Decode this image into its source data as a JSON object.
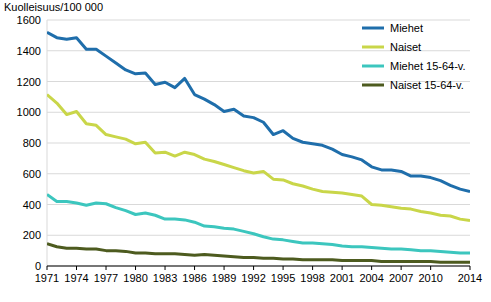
{
  "chart_data": {
    "type": "line",
    "ylabel": "Kuolleisuus/100 000",
    "x": [
      1971,
      1972,
      1973,
      1974,
      1975,
      1976,
      1977,
      1978,
      1979,
      1980,
      1981,
      1982,
      1983,
      1984,
      1985,
      1986,
      1987,
      1988,
      1989,
      1990,
      1991,
      1992,
      1993,
      1994,
      1995,
      1996,
      1997,
      1998,
      1999,
      2000,
      2001,
      2002,
      2003,
      2004,
      2005,
      2006,
      2007,
      2008,
      2009,
      2010,
      2011,
      2012,
      2013,
      2014
    ],
    "series": [
      {
        "name": "Miehet",
        "color": "#1f6eab",
        "values": [
          1520,
          1485,
          1475,
          1485,
          1410,
          1410,
          1365,
          1320,
          1275,
          1250,
          1255,
          1180,
          1195,
          1160,
          1220,
          1115,
          1085,
          1050,
          1005,
          1020,
          975,
          965,
          935,
          855,
          880,
          830,
          805,
          795,
          785,
          760,
          725,
          710,
          690,
          645,
          625,
          625,
          615,
          585,
          585,
          575,
          555,
          525,
          500,
          485
        ]
      },
      {
        "name": "Naiset",
        "color": "#c9d649",
        "values": [
          1115,
          1060,
          985,
          1005,
          925,
          915,
          855,
          840,
          825,
          795,
          805,
          735,
          740,
          715,
          740,
          725,
          695,
          680,
          660,
          640,
          620,
          605,
          615,
          565,
          560,
          535,
          520,
          500,
          485,
          480,
          475,
          465,
          455,
          400,
          395,
          385,
          375,
          370,
          355,
          345,
          330,
          325,
          305,
          295
        ]
      },
      {
        "name": "Miehet 15-64-v.",
        "color": "#3cc6be",
        "values": [
          465,
          420,
          420,
          410,
          395,
          410,
          405,
          380,
          360,
          335,
          345,
          330,
          305,
          305,
          300,
          285,
          260,
          255,
          245,
          240,
          225,
          210,
          190,
          175,
          170,
          160,
          150,
          150,
          145,
          140,
          130,
          125,
          125,
          120,
          115,
          110,
          110,
          105,
          100,
          100,
          95,
          90,
          85,
          85
        ]
      },
      {
        "name": "Naiset 15-64-v.",
        "color": "#4d5b1f",
        "values": [
          145,
          125,
          115,
          115,
          110,
          110,
          100,
          100,
          95,
          85,
          85,
          80,
          80,
          80,
          75,
          70,
          75,
          70,
          65,
          60,
          55,
          55,
          50,
          50,
          45,
          45,
          40,
          40,
          40,
          40,
          35,
          35,
          35,
          35,
          30,
          30,
          30,
          30,
          30,
          30,
          25,
          25,
          25,
          25
        ]
      }
    ],
    "xlim": [
      1971,
      2014
    ],
    "xticks": [
      1971,
      1974,
      1977,
      1980,
      1983,
      1986,
      1989,
      1992,
      1995,
      1998,
      2001,
      2004,
      2007,
      2010,
      2014
    ],
    "ylim": [
      0,
      1600
    ],
    "yticks": [
      0,
      200,
      400,
      600,
      800,
      1000,
      1200,
      1400,
      1600
    ],
    "grid": true,
    "legend": "top-right"
  }
}
